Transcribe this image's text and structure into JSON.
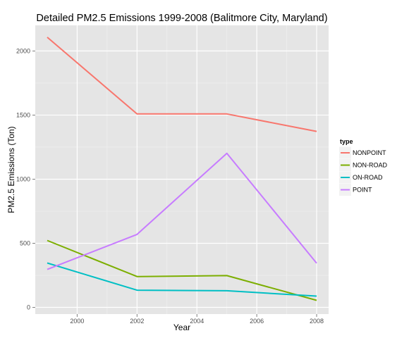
{
  "chart_data": {
    "type": "line",
    "title": "Detailed PM2.5 Emissions 1999-2008 (Balitmore City, Maryland)",
    "xlabel": "Year",
    "ylabel": "PM2.5 Emissions (Ton)",
    "x": [
      1999,
      2002,
      2005,
      2008
    ],
    "xlim": [
      1998.6,
      2008.4
    ],
    "ylim": [
      -52,
      2200
    ],
    "xticks": [
      2000,
      2002,
      2004,
      2006,
      2008
    ],
    "yticks": [
      0,
      500,
      1000,
      1500,
      2000
    ],
    "grid": true,
    "legend_title": "type",
    "legend_position": "right",
    "series": [
      {
        "name": "NONPOINT",
        "color": "#F8766D",
        "values": [
          2107,
          1509,
          1509,
          1373
        ]
      },
      {
        "name": "NON-ROAD",
        "color": "#7CAE00",
        "values": [
          522,
          241,
          248,
          55
        ]
      },
      {
        "name": "ON-ROAD",
        "color": "#00BFC4",
        "values": [
          346,
          134,
          130,
          88
        ]
      },
      {
        "name": "POINT",
        "color": "#C77CFF",
        "values": [
          296,
          569,
          1202,
          345
        ]
      }
    ]
  }
}
